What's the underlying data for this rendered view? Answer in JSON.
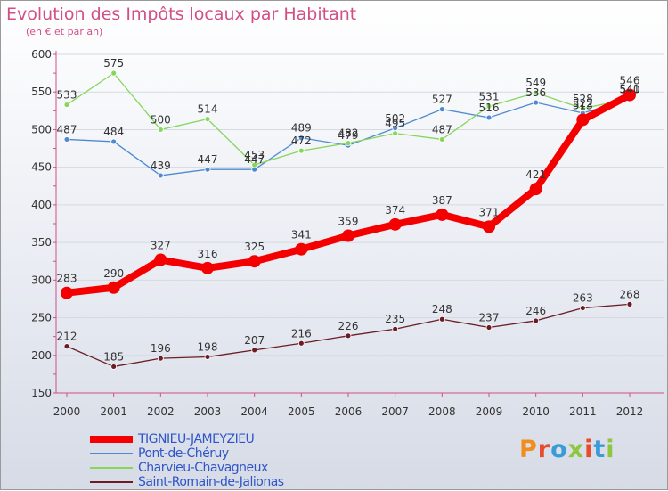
{
  "title": "Evolution des Impôts locaux par Habitant",
  "subtitle": "(en € et par an)",
  "logo_text": "Proxiti",
  "chart_data": {
    "type": "line",
    "categories": [
      "2000",
      "2001",
      "2002",
      "2003",
      "2004",
      "2005",
      "2006",
      "2007",
      "2008",
      "2009",
      "2010",
      "2011",
      "2012"
    ],
    "ylim": [
      150,
      600
    ],
    "yticks": [
      150,
      200,
      250,
      300,
      350,
      400,
      450,
      500,
      550,
      600
    ],
    "series": [
      {
        "name": "TIGNIEU-JAMEYZIEU",
        "color": "#f50000",
        "values": [
          283,
          290,
          327,
          316,
          325,
          341,
          359,
          374,
          387,
          371,
          421,
          513,
          546
        ]
      },
      {
        "name": "Pont-de-Chéruy",
        "color": "#4f8ad1",
        "values": [
          487,
          484,
          439,
          447,
          447,
          489,
          479,
          502,
          527,
          516,
          536,
          522,
          540
        ]
      },
      {
        "name": "Charvieu-Chavagneux",
        "color": "#86d65c",
        "values": [
          533,
          575,
          500,
          514,
          453,
          472,
          482,
          495,
          487,
          531,
          549,
          528,
          541
        ]
      },
      {
        "name": "Saint-Romain-de-Jalionas",
        "color": "#6b1c24",
        "values": [
          212,
          185,
          196,
          198,
          207,
          216,
          226,
          235,
          248,
          237,
          246,
          263,
          268
        ]
      }
    ]
  }
}
